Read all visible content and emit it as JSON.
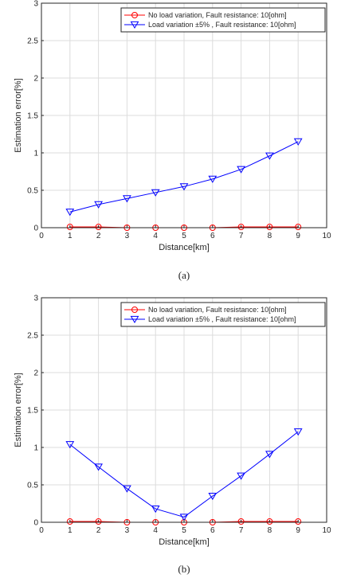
{
  "chart_data": [
    {
      "type": "line",
      "caption": "(a)",
      "xlabel": "Distance[km]",
      "ylabel": "Estimation error[%]",
      "xlim": [
        0,
        10
      ],
      "ylim": [
        0,
        3
      ],
      "xticks": [
        "0",
        "1",
        "2",
        "3",
        "4",
        "5",
        "6",
        "7",
        "8",
        "9",
        "10"
      ],
      "yticks": [
        "0",
        "0.5",
        "1",
        "1.5",
        "2",
        "2.5",
        "3"
      ],
      "grid": true,
      "legend_position": "top-right",
      "x": [
        1,
        2,
        3,
        4,
        5,
        6,
        7,
        8,
        9
      ],
      "series": [
        {
          "name": "No load variation, Fault resistance: 10[ohm]",
          "marker": "circle",
          "color": "#ff0000",
          "values": [
            0.01,
            0.01,
            0.0,
            0.0,
            0.0,
            0.0,
            0.01,
            0.01,
            0.01
          ]
        },
        {
          "name": "Load variation ±5% , Fault resistance: 10[ohm]",
          "marker": "triangle-down",
          "color": "#0000ff",
          "values": [
            0.21,
            0.31,
            0.39,
            0.47,
            0.55,
            0.65,
            0.78,
            0.96,
            1.15
          ]
        }
      ]
    },
    {
      "type": "line",
      "caption": "(b)",
      "xlabel": "Distance[km]",
      "ylabel": "Estimation error[%]",
      "xlim": [
        0,
        10
      ],
      "ylim": [
        0,
        3
      ],
      "xticks": [
        "0",
        "1",
        "2",
        "3",
        "4",
        "5",
        "6",
        "7",
        "8",
        "9",
        "10"
      ],
      "yticks": [
        "0",
        "0.5",
        "1",
        "1.5",
        "2",
        "2.5",
        "3"
      ],
      "grid": true,
      "legend_position": "top-right",
      "x": [
        1,
        2,
        3,
        4,
        5,
        6,
        7,
        8,
        9
      ],
      "series": [
        {
          "name": "No load variation, Fault resistance: 10[ohm]",
          "marker": "circle",
          "color": "#ff0000",
          "values": [
            0.01,
            0.01,
            0.0,
            0.0,
            0.0,
            0.0,
            0.01,
            0.01,
            0.01
          ]
        },
        {
          "name": "Load variation ±5% , Fault resistance: 10[ohm]",
          "marker": "triangle-down",
          "color": "#0000ff",
          "values": [
            1.04,
            0.74,
            0.45,
            0.18,
            0.07,
            0.35,
            0.62,
            0.91,
            1.21
          ]
        }
      ]
    }
  ]
}
